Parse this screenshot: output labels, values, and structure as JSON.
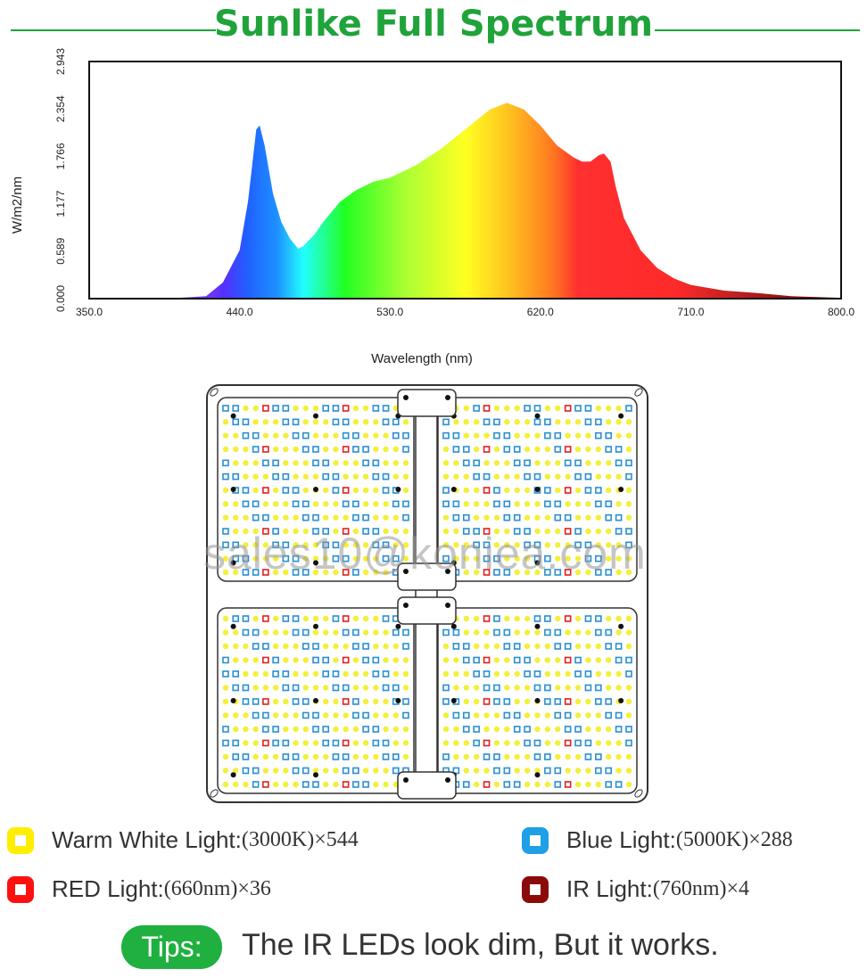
{
  "title": "Sunlike Full Spectrum",
  "chart_data": {
    "type": "area",
    "title": "Sunlike Full Spectrum",
    "xlabel": "Wavelength (nm)",
    "ylabel": "W/m2/nm",
    "xlim": [
      350,
      800
    ],
    "ylim": [
      0,
      2.943
    ],
    "xticks": [
      "350.0",
      "440.0",
      "530.0",
      "620.0",
      "710.0",
      "800.0"
    ],
    "yticks": [
      "0.000",
      "0.589",
      "1.177",
      "1.766",
      "2.354",
      "2.943"
    ],
    "grid": false,
    "x": [
      350,
      400,
      420,
      430,
      440,
      445,
      450,
      452,
      455,
      460,
      465,
      470,
      475,
      478,
      485,
      490,
      500,
      510,
      520,
      530,
      545,
      560,
      575,
      590,
      600,
      610,
      620,
      630,
      640,
      645,
      650,
      655,
      658,
      662,
      665,
      670,
      680,
      690,
      700,
      710,
      730,
      750,
      770,
      800
    ],
    "y": [
      0,
      0.005,
      0.03,
      0.2,
      0.6,
      1.2,
      2.1,
      2.15,
      1.9,
      1.3,
      0.95,
      0.75,
      0.62,
      0.65,
      0.8,
      0.95,
      1.2,
      1.35,
      1.45,
      1.5,
      1.65,
      1.85,
      2.1,
      2.35,
      2.43,
      2.35,
      2.15,
      1.9,
      1.75,
      1.7,
      1.7,
      1.78,
      1.8,
      1.7,
      1.4,
      1.0,
      0.6,
      0.38,
      0.25,
      0.17,
      0.1,
      0.07,
      0.03,
      0.01
    ]
  },
  "watermark": "sales10@koniea.com",
  "legend": [
    {
      "label": "Warm White Light:",
      "value": "(3000K)×544",
      "color": "#ffee00"
    },
    {
      "label": "Blue Light:",
      "value": "(5000K)×288",
      "color": "#1e9fe6"
    },
    {
      "label": "RED Light:",
      "value": "(660nm)×36",
      "color": "#ff1010"
    },
    {
      "label": "IR Light:",
      "value": "(760nm)×4",
      "color": "#8b0a0a"
    }
  ],
  "tips": {
    "badge": "Tips:",
    "text": "The IR LEDs look dim, But it works."
  }
}
